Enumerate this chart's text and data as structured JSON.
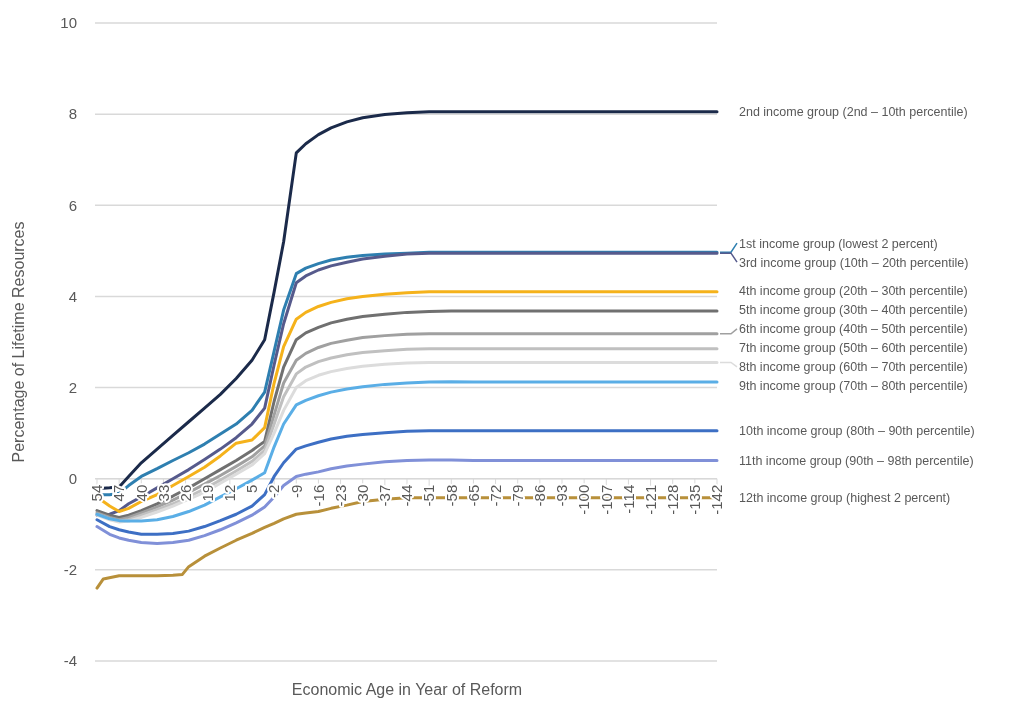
{
  "chart_data": {
    "type": "line",
    "xlabel": "Economic Age in Year of Reform",
    "ylabel": "Percentage of Lifetime Resources",
    "xlim": [
      54,
      -142
    ],
    "xticks": [
      54,
      47,
      40,
      33,
      26,
      19,
      12,
      5,
      -2,
      -9,
      -16,
      -23,
      -30,
      -37,
      -44,
      -51,
      -58,
      -65,
      -72,
      -79,
      -86,
      -93,
      -100,
      -107,
      -114,
      -121,
      -128,
      -135,
      -142
    ],
    "ylim": [
      -4,
      10
    ],
    "yticks": [
      -4,
      -2,
      0,
      2,
      4,
      6,
      8,
      10
    ],
    "grid": "y",
    "legend": "right",
    "marker": "none",
    "line_style": "solid",
    "x": [
      54,
      50,
      47,
      44,
      40,
      35,
      30,
      25,
      20,
      15,
      10,
      5,
      1,
      -2,
      -5,
      -9,
      -12,
      -16,
      -20,
      -25,
      -30,
      -37,
      -44,
      -51,
      -58,
      -65,
      -142
    ],
    "series": [
      {
        "name": "2nd income group (2nd – 10th percentile)",
        "color": "#1b2a4a",
        "values": [
          -0.22,
          -0.2,
          -0.18,
          0.05,
          0.35,
          0.65,
          0.95,
          1.25,
          1.55,
          1.85,
          2.2,
          2.6,
          3.05,
          4.1,
          5.2,
          7.15,
          7.35,
          7.55,
          7.7,
          7.83,
          7.92,
          7.99,
          8.03,
          8.05,
          8.05,
          8.05,
          8.05
        ]
      },
      {
        "name": "1st income group (lowest 2 percent)",
        "color": "#2e7fb0",
        "values": [
          -0.35,
          -0.35,
          -0.32,
          -0.15,
          0.05,
          0.22,
          0.4,
          0.57,
          0.76,
          0.98,
          1.2,
          1.5,
          1.9,
          2.8,
          3.7,
          4.5,
          4.62,
          4.72,
          4.8,
          4.86,
          4.9,
          4.93,
          4.95,
          4.97,
          4.97,
          4.97,
          4.97
        ]
      },
      {
        "name": "3rd income group (10th – 20th percentile)",
        "color": "#565a8c",
        "values": [
          -0.8,
          -0.78,
          -0.7,
          -0.55,
          -0.4,
          -0.2,
          0.0,
          0.2,
          0.42,
          0.65,
          0.9,
          1.2,
          1.55,
          2.5,
          3.4,
          4.3,
          4.45,
          4.58,
          4.67,
          4.75,
          4.82,
          4.88,
          4.93,
          4.95,
          4.95,
          4.95,
          4.95
        ]
      },
      {
        "name": "4th income group (20th – 30th percentile)",
        "color": "#f5b21b",
        "values": [
          -0.4,
          -0.6,
          -0.72,
          -0.65,
          -0.5,
          -0.35,
          -0.15,
          0.05,
          0.25,
          0.5,
          0.78,
          0.85,
          1.12,
          2.1,
          2.9,
          3.5,
          3.65,
          3.78,
          3.87,
          3.95,
          4.0,
          4.05,
          4.08,
          4.1,
          4.1,
          4.1,
          4.1
        ]
      },
      {
        "name": "5th income group (30th – 40th percentile)",
        "color": "#707070",
        "values": [
          -0.7,
          -0.8,
          -0.85,
          -0.8,
          -0.7,
          -0.55,
          -0.38,
          -0.2,
          0.0,
          0.2,
          0.4,
          0.62,
          0.82,
          1.7,
          2.45,
          3.05,
          3.2,
          3.32,
          3.42,
          3.5,
          3.56,
          3.61,
          3.65,
          3.67,
          3.68,
          3.68,
          3.68
        ]
      },
      {
        "name": "6th income group (40th – 50th percentile)",
        "color": "#a0a0a0",
        "values": [
          -0.75,
          -0.85,
          -0.9,
          -0.85,
          -0.75,
          -0.62,
          -0.47,
          -0.3,
          -0.12,
          0.07,
          0.27,
          0.48,
          0.72,
          1.4,
          2.1,
          2.6,
          2.75,
          2.88,
          2.97,
          3.04,
          3.1,
          3.14,
          3.17,
          3.18,
          3.18,
          3.18,
          3.18
        ]
      },
      {
        "name": "7th income group (50th – 60th percentile)",
        "color": "#c0c0c0",
        "values": [
          -0.78,
          -0.88,
          -0.93,
          -0.9,
          -0.8,
          -0.68,
          -0.55,
          -0.4,
          -0.22,
          -0.03,
          0.17,
          0.38,
          0.62,
          1.2,
          1.8,
          2.3,
          2.45,
          2.57,
          2.65,
          2.72,
          2.77,
          2.81,
          2.84,
          2.85,
          2.85,
          2.85,
          2.85
        ]
      },
      {
        "name": "8th income group (60th – 70th percentile)",
        "color": "#dcdcdc",
        "values": [
          -0.8,
          -0.9,
          -0.95,
          -0.93,
          -0.85,
          -0.73,
          -0.6,
          -0.45,
          -0.3,
          -0.1,
          0.1,
          0.3,
          0.55,
          1.0,
          1.5,
          2.0,
          2.15,
          2.27,
          2.35,
          2.42,
          2.47,
          2.51,
          2.54,
          2.55,
          2.55,
          2.55,
          2.55
        ]
      },
      {
        "name": "9th income group (70th – 80th percentile)",
        "color": "#5aaee6",
        "values": [
          -0.78,
          -0.88,
          -0.92,
          -0.93,
          -0.93,
          -0.9,
          -0.83,
          -0.72,
          -0.58,
          -0.4,
          -0.22,
          -0.03,
          0.13,
          0.7,
          1.2,
          1.62,
          1.72,
          1.82,
          1.9,
          1.97,
          2.02,
          2.07,
          2.1,
          2.12,
          2.13,
          2.12,
          2.12
        ]
      },
      {
        "name": "10th income group (80th – 90th percentile)",
        "color": "#3d6fc4",
        "values": [
          -0.9,
          -1.05,
          -1.12,
          -1.17,
          -1.22,
          -1.22,
          -1.2,
          -1.15,
          -1.05,
          -0.92,
          -0.78,
          -0.6,
          -0.35,
          0.05,
          0.35,
          0.65,
          0.72,
          0.8,
          0.87,
          0.93,
          0.97,
          1.01,
          1.04,
          1.05,
          1.05,
          1.05,
          1.05
        ]
      },
      {
        "name": "11th income group (90th – 98th percentile)",
        "color": "#8090d8",
        "values": [
          -1.05,
          -1.22,
          -1.3,
          -1.35,
          -1.4,
          -1.42,
          -1.4,
          -1.35,
          -1.25,
          -1.12,
          -0.97,
          -0.8,
          -0.62,
          -0.4,
          -0.15,
          0.05,
          0.1,
          0.15,
          0.22,
          0.28,
          0.32,
          0.37,
          0.4,
          0.41,
          0.41,
          0.4,
          0.4
        ]
      },
      {
        "name": "12th income group (highest 2 percent)",
        "color": "#b8903a",
        "x": [
          54,
          52,
          47,
          44,
          40,
          35,
          30,
          27,
          25,
          20,
          15,
          10,
          5,
          1,
          -2,
          -5,
          -9,
          -12,
          -16,
          -20,
          -25,
          -30,
          -37,
          -44,
          -142
        ],
        "values": [
          -2.4,
          -2.2,
          -2.13,
          -2.13,
          -2.13,
          -2.13,
          -2.12,
          -2.1,
          -1.93,
          -1.7,
          -1.52,
          -1.35,
          -1.2,
          -1.07,
          -0.98,
          -0.88,
          -0.78,
          -0.75,
          -0.72,
          -0.65,
          -0.58,
          -0.5,
          -0.45,
          -0.42,
          -0.42
        ]
      }
    ]
  }
}
